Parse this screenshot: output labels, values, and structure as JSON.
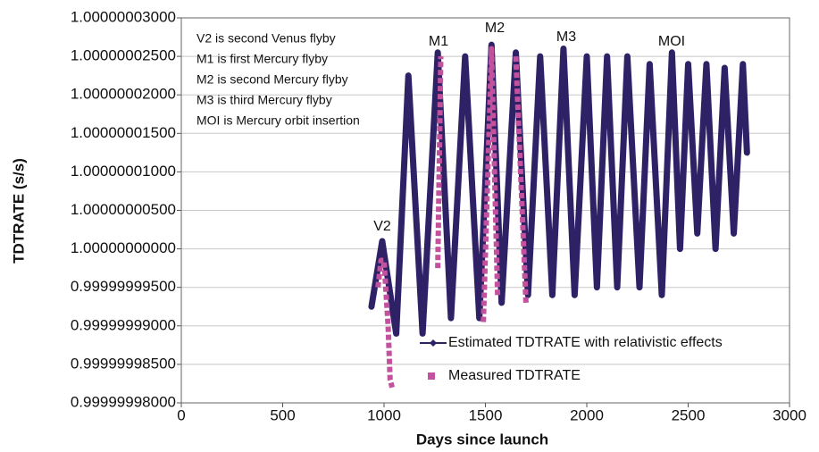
{
  "chart_data": {
    "type": "line",
    "xlabel": "Days since launch",
    "ylabel": "TDTRATE (s/s)",
    "notes": [
      "V2 is second Venus flyby",
      "M1 is first Mercury flyby",
      "M2 is second Mercury flyby",
      "M3 is third Mercury flyby",
      "MOI is Mercury orbit insertion"
    ],
    "annotations": [
      "V2",
      "M1",
      "M2",
      "M3",
      "MOI"
    ],
    "xlim": [
      0,
      3000
    ],
    "xticks": [
      0,
      500,
      1000,
      1500,
      2000,
      2500,
      3000
    ],
    "ylim": [
      0.99999998,
      1.00000003
    ],
    "yticks": [
      {
        "value": 0.99999998,
        "label": "0.99999998000"
      },
      {
        "value": 0.999999985,
        "label": "0.99999998500"
      },
      {
        "value": 0.99999999,
        "label": "0.99999999000"
      },
      {
        "value": 0.999999995,
        "label": "0.99999999500"
      },
      {
        "value": 1,
        "label": "1.00000000000"
      },
      {
        "value": 1.000000005,
        "label": "1.00000000500"
      },
      {
        "value": 1.00000001,
        "label": "1.00000001000"
      },
      {
        "value": 1.000000015,
        "label": "1.00000001500"
      },
      {
        "value": 1.00000002,
        "label": "1.00000002000"
      },
      {
        "value": 1.000000025,
        "label": "1.00000002500"
      },
      {
        "value": 1.00000003,
        "label": "1.00000003000"
      }
    ],
    "grid": true,
    "series": [
      {
        "name": "Estimated TDTRATE with relativistic effects",
        "color": "#2e2166",
        "x": [
          938,
          991,
          1060,
          1120,
          1190,
          1265,
          1330,
          1400,
          1470,
          1530,
          1580,
          1650,
          1710,
          1770,
          1830,
          1885,
          1940,
          2000,
          2050,
          2100,
          2150,
          2200,
          2260,
          2310,
          2370,
          2420,
          2460,
          2500,
          2545,
          2590,
          2635,
          2680,
          2725,
          2770,
          2790
        ],
        "values": [
          0.9999999925,
          1.000000001,
          0.999999989,
          1.0000000225,
          0.999999989,
          1.0000000255,
          0.999999991,
          1.000000025,
          0.999999991,
          1.0000000265,
          0.999999993,
          1.0000000255,
          0.999999994,
          1.000000025,
          0.999999994,
          1.000000026,
          0.999999994,
          1.000000025,
          0.999999995,
          1.000000025,
          0.999999995,
          1.000000025,
          0.999999995,
          1.000000024,
          0.999999994,
          1.0000000255,
          1,
          1.000000024,
          1.000000002,
          1.000000024,
          1,
          1.0000000235,
          1.000000002,
          1.000000024,
          1.0000000125
        ]
      },
      {
        "name": "Measured TDTRATE",
        "color": "#c2529e",
        "x": [
          970,
          985,
          1000,
          1020,
          1030,
          1040,
          null,
          1265,
          1280,
          null,
          1490,
          1530,
          1560,
          null,
          1650,
          1700
        ],
        "values": [
          0.999999995,
          0.9999999985,
          0.9999999985,
          0.99999999,
          0.999999983,
          0.999999982,
          null,
          0.9999999975,
          1.000000025,
          null,
          0.9999999905,
          1.000000026,
          0.999999994,
          null,
          1.000000025,
          0.999999993
        ]
      }
    ]
  }
}
